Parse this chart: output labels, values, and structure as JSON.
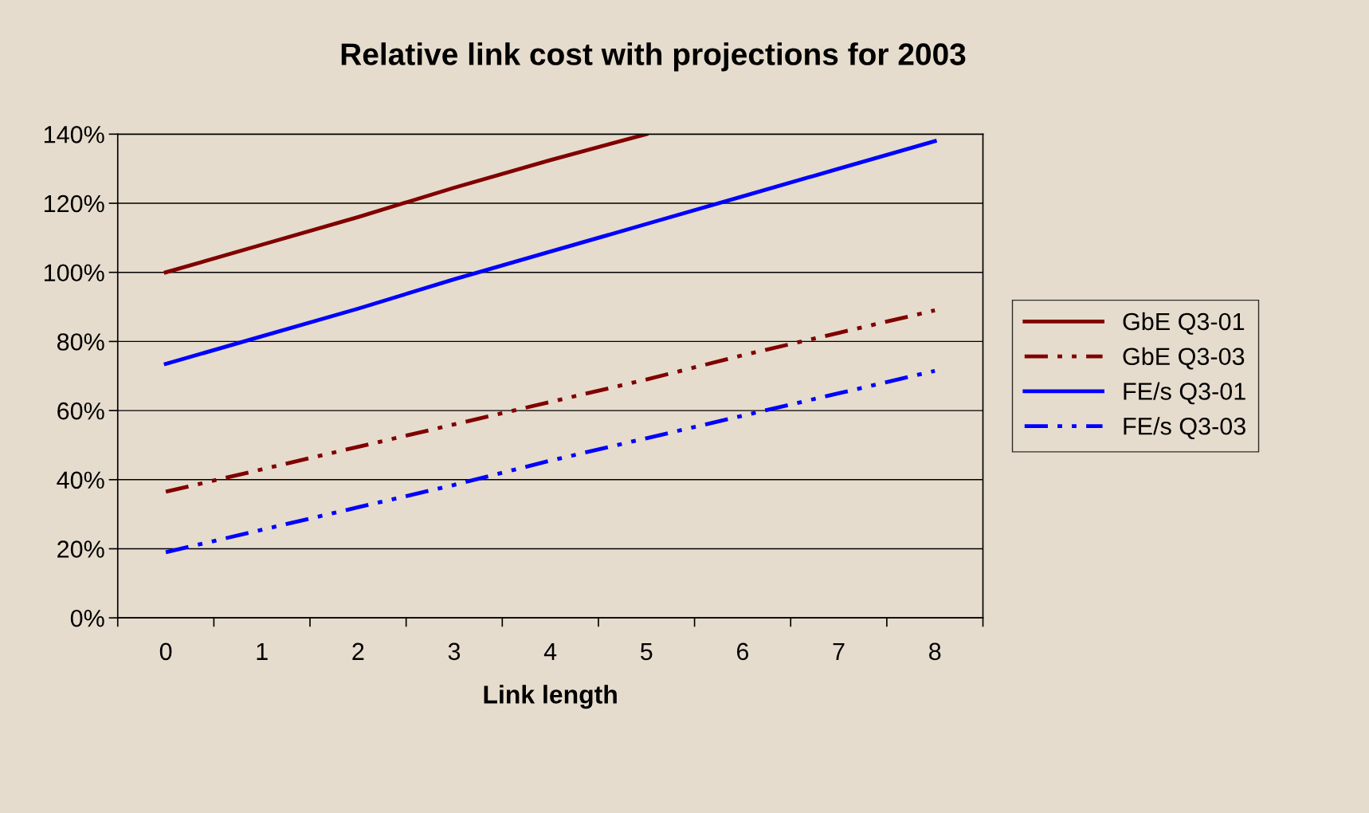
{
  "chart_data": {
    "type": "line",
    "title": "Relative link cost with projections for 2003",
    "xlabel": "Link length",
    "categories": [
      "0",
      "1",
      "2",
      "3",
      "4",
      "5",
      "6",
      "7",
      "8"
    ],
    "series": [
      {
        "name": "GbE Q3-01",
        "color": "#800000",
        "line_style": "solid",
        "values": [
          100,
          108,
          116,
          124.5,
          132.5,
          140,
          null,
          null,
          null
        ]
      },
      {
        "name": "GbE Q3-03",
        "color": "#800000",
        "line_style": "dashed",
        "values": [
          36.5,
          43,
          49.5,
          56,
          62.5,
          69,
          76,
          82.5,
          89
        ]
      },
      {
        "name": "FE/s Q3-01",
        "color": "#0000ff",
        "line_style": "solid",
        "values": [
          73.5,
          81.5,
          89.5,
          98,
          106,
          114,
          122,
          130,
          138
        ]
      },
      {
        "name": "FE/s Q3-03",
        "color": "#0000ff",
        "line_style": "dashed",
        "values": [
          19,
          25.5,
          32,
          38.5,
          45.5,
          52,
          58.5,
          65,
          71.5
        ]
      }
    ],
    "ylim": [
      0,
      140
    ],
    "yticks": [
      {
        "value": 0,
        "label": "0%"
      },
      {
        "value": 20,
        "label": "20%"
      },
      {
        "value": 40,
        "label": "40%"
      },
      {
        "value": 60,
        "label": "60%"
      },
      {
        "value": 80,
        "label": "80%"
      },
      {
        "value": 100,
        "label": "100%"
      },
      {
        "value": 120,
        "label": "120%"
      },
      {
        "value": 140,
        "label": "140%"
      }
    ],
    "grid": "y",
    "legend": "right",
    "marker": "none"
  }
}
